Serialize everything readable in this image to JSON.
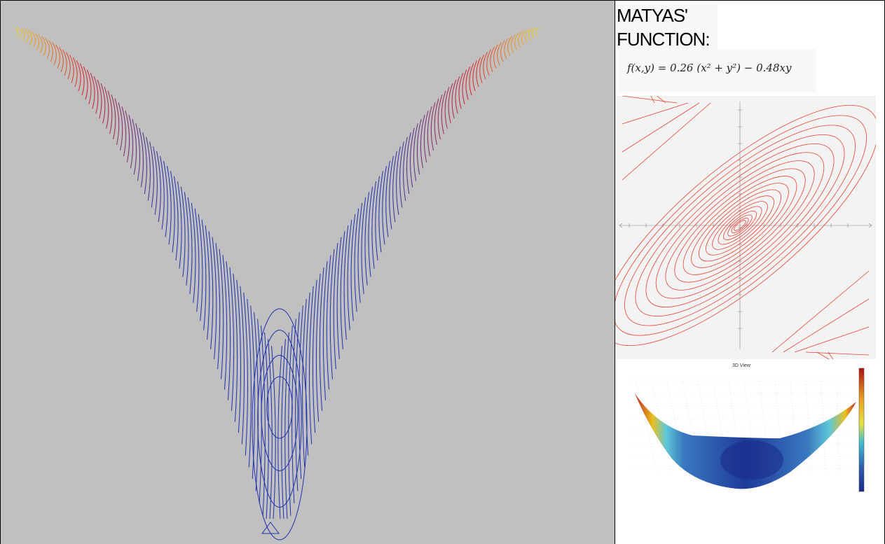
{
  "title": {
    "line1": "MATYAS'",
    "line2": "FUNCTION:"
  },
  "formula": "f(x,y) = 0.26 (x² + y²) − 0.48xy",
  "plot3d": {
    "title": "3D View"
  },
  "colors": {
    "left_background": "#c0c0c0",
    "curve_top": "#f0d020",
    "curve_mid": "#e02028",
    "curve_bottom": "#2030b0",
    "contour_line": "#e84030",
    "contour_background": "#f3f3f3",
    "colorbar_top": "#b01010",
    "colorbar_bottom": "#1a2a8c"
  },
  "icons": [
    "triangle-marker"
  ]
}
